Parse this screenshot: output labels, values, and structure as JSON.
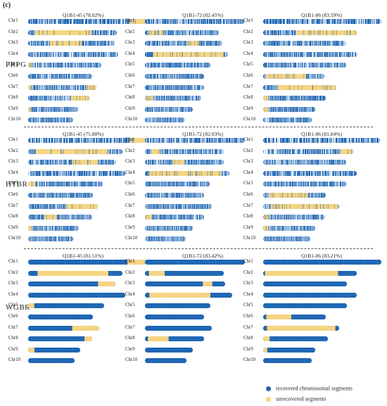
{
  "panel_label": "(c)",
  "colors": {
    "recovered": "#1f67b4",
    "unrecovered": "#f6d583",
    "light": "#e8eef7"
  },
  "legend": {
    "recovered": "recovered chromosomal segments",
    "unrecovered": "unrecovered segments"
  },
  "chromosome_labels": [
    "Chr1",
    "Chr2",
    "Chr3",
    "Chr4",
    "Chr5",
    "Chr6",
    "Chr7",
    "Chr8",
    "Chr9",
    "Chr10"
  ],
  "groups": [
    {
      "name": "PRPG",
      "style": "dense",
      "columns": [
        {
          "title": "Q1B1-45 (78.02%)",
          "lengths": [
            1.0,
            0.75,
            0.73,
            0.76,
            0.62,
            0.54,
            0.58,
            0.52,
            0.42,
            0.38
          ],
          "yellow": [
            [
              [
                0.86,
                1.0
              ]
            ],
            [
              [
                0.08,
                0.72
              ]
            ],
            [
              [
                0.25,
                0.62
              ]
            ],
            [],
            [
              [
                0.0,
                0.05
              ]
            ],
            [],
            [
              [
                0.0,
                0.04
              ],
              [
                0.85,
                1.0
              ]
            ],
            [
              [
                0.7,
                1.0
              ]
            ],
            [
              [
                0.0,
                0.06
              ]
            ],
            []
          ]
        },
        {
          "title": "Q1B1-72 (82.45%)",
          "lengths": [
            0.95,
            0.71,
            0.74,
            0.8,
            0.63,
            0.57,
            0.57,
            0.54,
            0.46,
            0.38
          ],
          "yellow": [
            [],
            [
              [
                0.05,
                0.25
              ]
            ],
            [
              [
                0.55,
                0.7
              ]
            ],
            [
              [
                0.1,
                0.95
              ]
            ],
            [],
            [],
            [],
            [
              [
                0.0,
                0.15
              ]
            ],
            [],
            []
          ]
        },
        {
          "title": "Q1B1-86 (83.59%)",
          "lengths": [
            1.0,
            0.79,
            0.7,
            0.79,
            0.7,
            0.52,
            0.62,
            0.53,
            0.44,
            0.41
          ],
          "yellow": [
            [],
            [
              [
                0.35,
                1.0
              ]
            ],
            [],
            [],
            [],
            [
              [
                0.05,
                0.7
              ]
            ],
            [
              [
                0.2,
                1.0
              ]
            ],
            [
              [
                0.0,
                0.08
              ]
            ],
            [
              [
                0.0,
                0.1
              ]
            ],
            []
          ]
        }
      ]
    },
    {
      "name": "HTBR",
      "style": "dense",
      "columns": [
        {
          "title": "Q1B1-45 (75.88%)",
          "lengths": [
            1.0,
            0.8,
            0.74,
            0.82,
            0.63,
            0.55,
            0.59,
            0.54,
            0.43,
            0.38
          ],
          "yellow": [
            [
              [
                0.86,
                1.0
              ]
            ],
            [
              [
                0.08,
                0.85
              ]
            ],
            [
              [
                0.5,
                0.8
              ]
            ],
            [],
            [
              [
                0.0,
                0.1
              ]
            ],
            [],
            [
              [
                0.55,
                1.0
              ]
            ],
            [
              [
                0.25,
                0.45
              ]
            ],
            [
              [
                0.0,
                0.08
              ]
            ],
            []
          ]
        },
        {
          "title": "Q1B1-72 (82.03%)",
          "lengths": [
            0.96,
            0.76,
            0.76,
            0.81,
            0.62,
            0.57,
            0.64,
            0.57,
            0.46,
            0.39
          ],
          "yellow": [
            [],
            [
              [
                0.08,
                0.2
              ]
            ],
            [
              [
                0.35,
                0.5
              ]
            ],
            [
              [
                0.05,
                0.9
              ]
            ],
            [],
            [],
            [],
            [
              [
                0.0,
                0.12
              ]
            ],
            [],
            []
          ]
        },
        {
          "title": "Q1B1-86 (81.84%)",
          "lengths": [
            0.99,
            0.76,
            0.7,
            0.79,
            0.7,
            0.53,
            0.64,
            0.52,
            0.44,
            0.4
          ],
          "yellow": [
            [],
            [
              [
                0.85,
                1.0
              ]
            ],
            [],
            [],
            [],
            [
              [
                0.1,
                0.72
              ]
            ],
            [
              [
                0.1,
                0.98
              ]
            ],
            [
              [
                0.0,
                0.1
              ]
            ],
            [
              [
                0.0,
                0.1
              ]
            ],
            []
          ]
        }
      ]
    },
    {
      "name": "WGBR",
      "style": "solid",
      "columns": [
        {
          "title": "Q1B1-45 (81.51%)",
          "lengths": [
            1.0,
            0.8,
            0.74,
            0.82,
            0.64,
            0.55,
            0.6,
            0.54,
            0.44,
            0.39
          ],
          "yellow": [
            [
              [
                0.84,
                1.0
              ]
            ],
            [
              [
                0.1,
                0.85
              ]
            ],
            [
              [
                0.8,
                1.0
              ]
            ],
            [],
            [
              [
                0.0,
                0.08
              ]
            ],
            [],
            [
              [
                0.62,
                1.0
              ]
            ],
            [
              [
                0.88,
                1.0
              ]
            ],
            [
              [
                0.0,
                0.12
              ]
            ],
            []
          ]
        },
        {
          "title": "Q1B1-72 (83.42%)",
          "lengths": [
            0.96,
            0.76,
            0.77,
            0.84,
            0.63,
            0.57,
            0.64,
            0.57,
            0.46,
            0.4
          ],
          "yellow": [
            [],
            [
              [
                0.05,
                0.25
              ]
            ],
            [
              [
                0.72,
                0.84
              ]
            ],
            [
              [
                0.05,
                0.75
              ]
            ],
            [],
            [],
            [],
            [
              [
                0.05,
                0.4
              ]
            ],
            [],
            []
          ]
        },
        {
          "title": "Q1B1-86 (83.21%)",
          "lengths": [
            1.0,
            0.79,
            0.71,
            0.79,
            0.71,
            0.53,
            0.64,
            0.55,
            0.44,
            0.41
          ],
          "yellow": [
            [],
            [
              [
                0.02,
                0.8
              ]
            ],
            [],
            [],
            [],
            [
              [
                0.05,
                0.45
              ]
            ],
            [
              [
                0.05,
                0.95
              ]
            ],
            [
              [
                0.0,
                0.1
              ]
            ],
            [
              [
                0.0,
                0.08
              ]
            ],
            []
          ]
        }
      ]
    }
  ]
}
